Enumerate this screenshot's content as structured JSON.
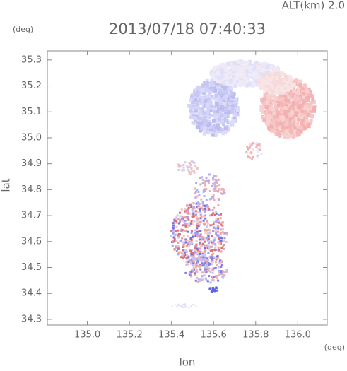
{
  "chart_data": {
    "type": "image",
    "title": "2013/07/18 07:40:33",
    "annotation": "ALT(km) 2.0",
    "y_unit": "(deg)",
    "x_unit": "(deg)",
    "xlabel": "lon",
    "ylabel": "lat",
    "xlim": [
      134.81,
      136.14
    ],
    "xticks": [
      {
        "value": 135,
        "label": "135.0"
      },
      135.2,
      135.4,
      135.6,
      135.8,
      {
        "value": 136,
        "label": "136.0"
      }
    ],
    "ylim": [
      34.278,
      35.335
    ],
    "yticks": [
      34.3,
      34.4,
      34.5,
      34.6,
      34.7,
      34.8,
      34.9,
      {
        "value": 35,
        "label": "35.0"
      },
      35.1,
      35.2,
      35.3
    ]
  }
}
